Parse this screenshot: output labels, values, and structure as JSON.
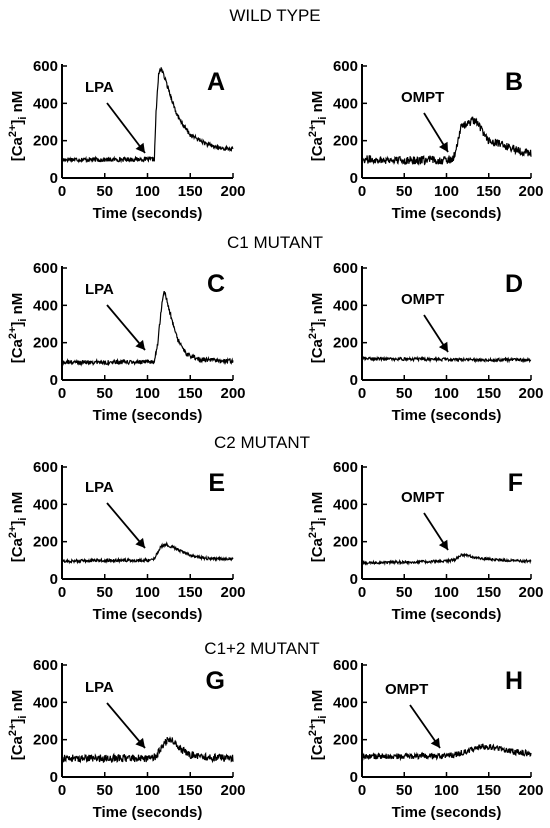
{
  "row_titles": [
    "WILD TYPE",
    "C1 MUTANT",
    "C2 MUTANT",
    "C1+2 MUTANT"
  ],
  "ylabel_main": "[Ca",
  "ylabel_sup": "2+",
  "ylabel_close": "]",
  "ylabel_sub": "i",
  "ylabel_unit": " nM",
  "xlabel": "Time (seconds)",
  "chart_data": [
    {
      "type": "line",
      "panel": "A",
      "agonist": "LPA",
      "row": "WILD TYPE",
      "xlabel": "Time (seconds)",
      "ylabel": "[Ca2+]i nM",
      "x_ticks": [
        0,
        50,
        100,
        150,
        200
      ],
      "y_ticks": [
        0,
        200,
        400,
        600
      ],
      "xlim": [
        0,
        200
      ],
      "ylim": [
        0,
        600
      ],
      "series": [
        {
          "points": [
            [
              0,
              100
            ],
            [
              50,
              98
            ],
            [
              90,
              100
            ],
            [
              108,
              100
            ],
            [
              110,
              350
            ],
            [
              113,
              555
            ],
            [
              116,
              590
            ],
            [
              125,
              470
            ],
            [
              135,
              330
            ],
            [
              150,
              230
            ],
            [
              170,
              180
            ],
            [
              185,
              160
            ],
            [
              200,
              155
            ]
          ],
          "noise": 12
        }
      ]
    },
    {
      "type": "line",
      "panel": "B",
      "agonist": "OMPT",
      "row": "WILD TYPE",
      "xlabel": "Time (seconds)",
      "ylabel": "[Ca2+]i nM",
      "x_ticks": [
        0,
        50,
        100,
        150,
        200
      ],
      "y_ticks": [
        0,
        200,
        400,
        600
      ],
      "xlim": [
        0,
        200
      ],
      "ylim": [
        0,
        600
      ],
      "series": [
        {
          "points": [
            [
              0,
              100
            ],
            [
              50,
              95
            ],
            [
              100,
              95
            ],
            [
              108,
              105
            ],
            [
              112,
              170
            ],
            [
              118,
              280
            ],
            [
              125,
              290
            ],
            [
              132,
              310
            ],
            [
              140,
              270
            ],
            [
              150,
              200
            ],
            [
              170,
              170
            ],
            [
              200,
              130
            ]
          ],
          "noise": 22
        }
      ]
    },
    {
      "type": "line",
      "panel": "C",
      "agonist": "LPA",
      "row": "C1 MUTANT",
      "xlabel": "Time (seconds)",
      "ylabel": "[Ca2+]i nM",
      "x_ticks": [
        0,
        50,
        100,
        150,
        200
      ],
      "y_ticks": [
        0,
        200,
        400,
        600
      ],
      "xlim": [
        0,
        200
      ],
      "ylim": [
        0,
        600
      ],
      "series": [
        {
          "points": [
            [
              0,
              95
            ],
            [
              50,
              95
            ],
            [
              100,
              95
            ],
            [
              108,
              100
            ],
            [
              112,
              200
            ],
            [
              117,
              420
            ],
            [
              120,
              480
            ],
            [
              125,
              380
            ],
            [
              135,
              220
            ],
            [
              145,
              140
            ],
            [
              160,
              110
            ],
            [
              200,
              100
            ]
          ],
          "noise": 12
        }
      ]
    },
    {
      "type": "line",
      "panel": "D",
      "agonist": "OMPT",
      "row": "C1 MUTANT",
      "xlabel": "Time (seconds)",
      "ylabel": "[Ca2+]i nM",
      "x_ticks": [
        0,
        50,
        100,
        150,
        200
      ],
      "y_ticks": [
        0,
        200,
        400,
        600
      ],
      "xlim": [
        0,
        200
      ],
      "ylim": [
        0,
        600
      ],
      "series": [
        {
          "points": [
            [
              0,
              115
            ],
            [
              50,
              112
            ],
            [
              100,
              110
            ],
            [
              150,
              108
            ],
            [
              200,
              108
            ]
          ],
          "noise": 8
        }
      ]
    },
    {
      "type": "line",
      "panel": "E",
      "agonist": "LPA",
      "row": "C2 MUTANT",
      "xlabel": "Time (seconds)",
      "ylabel": "[Ca2+]i nM",
      "x_ticks": [
        0,
        50,
        100,
        150,
        200
      ],
      "y_ticks": [
        0,
        200,
        400,
        600
      ],
      "xlim": [
        0,
        200
      ],
      "ylim": [
        0,
        600
      ],
      "series": [
        {
          "points": [
            [
              0,
              95
            ],
            [
              50,
              100
            ],
            [
              100,
              100
            ],
            [
              108,
              110
            ],
            [
              115,
              170
            ],
            [
              122,
              185
            ],
            [
              135,
              160
            ],
            [
              150,
              125
            ],
            [
              170,
              110
            ],
            [
              200,
              108
            ]
          ],
          "noise": 8
        }
      ]
    },
    {
      "type": "line",
      "panel": "F",
      "agonist": "OMPT",
      "row": "C2 MUTANT",
      "xlabel": "Time (seconds)",
      "ylabel": "[Ca2+]i nM",
      "x_ticks": [
        0,
        50,
        100,
        150,
        200
      ],
      "y_ticks": [
        0,
        200,
        400,
        600
      ],
      "xlim": [
        0,
        200
      ],
      "ylim": [
        0,
        600
      ],
      "series": [
        {
          "points": [
            [
              0,
              85
            ],
            [
              50,
              90
            ],
            [
              100,
              95
            ],
            [
              110,
              105
            ],
            [
              118,
              130
            ],
            [
              125,
              125
            ],
            [
              140,
              110
            ],
            [
              170,
              100
            ],
            [
              200,
              95
            ]
          ],
          "noise": 7
        }
      ]
    },
    {
      "type": "line",
      "panel": "G",
      "agonist": "LPA",
      "row": "C1+2 MUTANT",
      "xlabel": "Time (seconds)",
      "ylabel": "[Ca2+]i nM",
      "x_ticks": [
        0,
        50,
        100,
        150,
        200
      ],
      "y_ticks": [
        0,
        200,
        400,
        600
      ],
      "xlim": [
        0,
        200
      ],
      "ylim": [
        0,
        600
      ],
      "series": [
        {
          "points": [
            [
              0,
              100
            ],
            [
              50,
              100
            ],
            [
              100,
              100
            ],
            [
              110,
              110
            ],
            [
              120,
              180
            ],
            [
              126,
              210
            ],
            [
              135,
              160
            ],
            [
              150,
              120
            ],
            [
              170,
              105
            ],
            [
              200,
              100
            ]
          ],
          "noise": 20
        }
      ]
    },
    {
      "type": "line",
      "panel": "H",
      "agonist": "OMPT",
      "row": "C1+2 MUTANT",
      "xlabel": "Time (seconds)",
      "ylabel": "[Ca2+]i nM",
      "x_ticks": [
        0,
        50,
        100,
        150,
        200
      ],
      "y_ticks": [
        0,
        200,
        400,
        600
      ],
      "xlim": [
        0,
        200
      ],
      "ylim": [
        0,
        600
      ],
      "series": [
        {
          "points": [
            [
              0,
              110
            ],
            [
              50,
              110
            ],
            [
              100,
              110
            ],
            [
              115,
              125
            ],
            [
              130,
              150
            ],
            [
              145,
              165
            ],
            [
              160,
              155
            ],
            [
              180,
              135
            ],
            [
              200,
              125
            ]
          ],
          "noise": 16
        }
      ]
    }
  ]
}
